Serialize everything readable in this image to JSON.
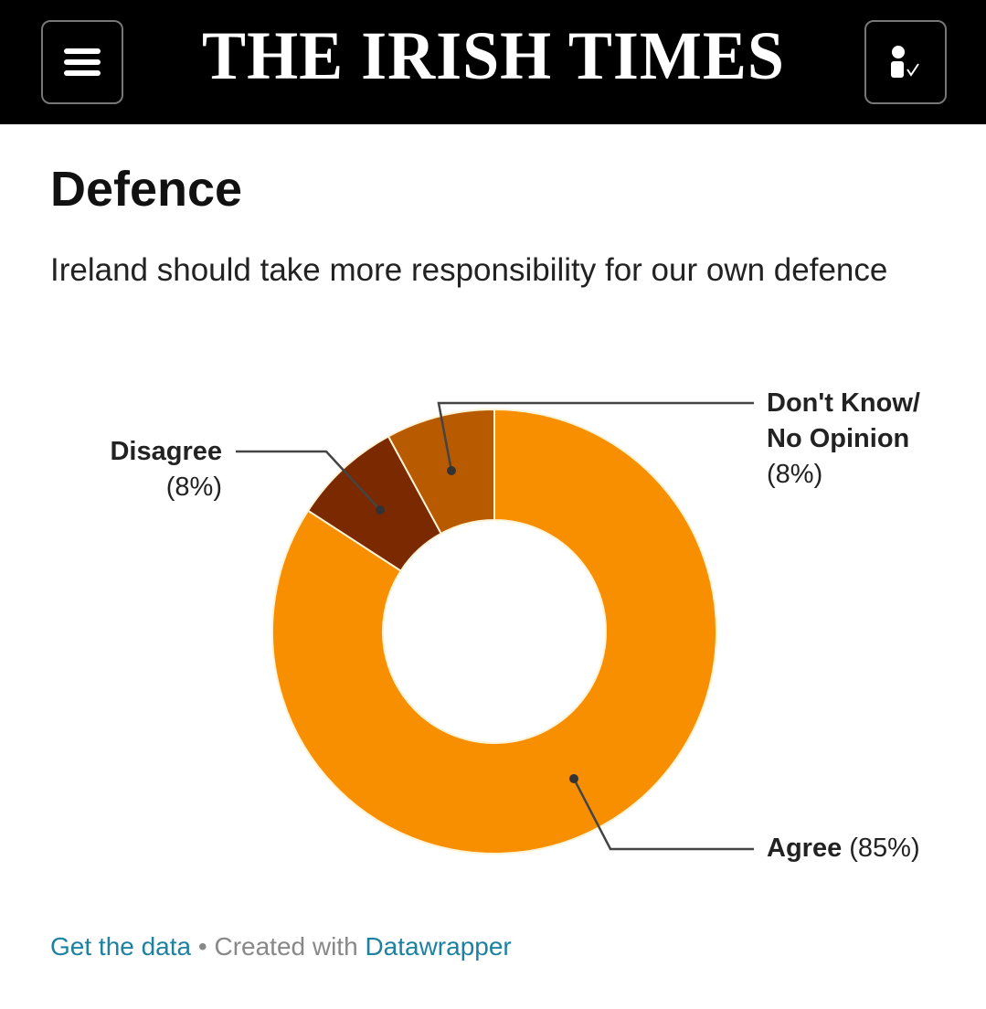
{
  "header": {
    "logo": "THE IRISH TIMES",
    "menu_icon": "hamburger-icon",
    "account_icon": "user-check-icon"
  },
  "title": "Defence",
  "subtitle": "Ireland should take more responsibility for our own defence",
  "chart_data": {
    "type": "pie",
    "donut": true,
    "title": "Defence",
    "subtitle": "Ireland should take more responsibility for our own defence",
    "slices": [
      {
        "label": "Agree",
        "value": 85,
        "value_label": "(85%)",
        "color": "#f78f00"
      },
      {
        "label": "Disagree",
        "value": 8,
        "value_label": "(8%)",
        "color": "#7b2900"
      },
      {
        "label": "Don't Know/ No Opinion",
        "label_line1": "Don't Know/",
        "label_line2": "No Opinion",
        "value": 8,
        "value_label": "(8%)",
        "color": "#b85a00"
      }
    ]
  },
  "footer": {
    "get_data": "Get the data",
    "separator": " • Created with ",
    "datawrapper": "Datawrapper"
  }
}
